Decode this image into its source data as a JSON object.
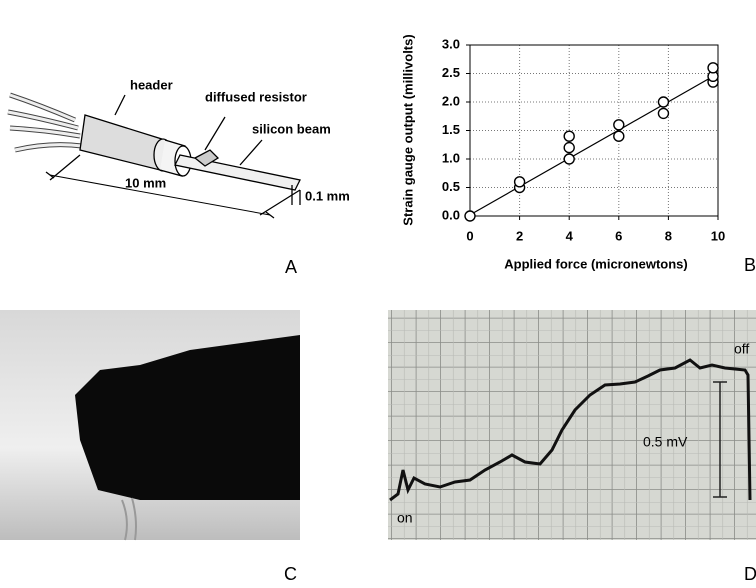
{
  "panel_a": {
    "label": "A",
    "annotations": [
      "header",
      "diffused resistor",
      "silicon beam",
      "10 mm",
      "0.1 mm"
    ]
  },
  "chart_data": {
    "type": "scatter",
    "panel_label": "B",
    "x_label": "Applied force (micronewtons)",
    "y_label": "Strain gauge output (millivolts)",
    "x": [
      0,
      2,
      2,
      4,
      4,
      4,
      6,
      6,
      7.8,
      7.8,
      9.8,
      9.8,
      9.8
    ],
    "values": [
      0,
      0.5,
      0.6,
      1.0,
      1.2,
      1.4,
      1.4,
      1.6,
      1.8,
      2.0,
      2.35,
      2.45,
      2.6
    ],
    "fit_line": {
      "x": [
        0,
        10
      ],
      "y": [
        0.02,
        2.5
      ]
    },
    "xlim": [
      0,
      10
    ],
    "xticks": [
      0,
      2,
      4,
      6,
      8,
      10
    ],
    "ylim": [
      0,
      3
    ],
    "yticks": [
      {
        "value": 0,
        "label": "0.0"
      },
      0.5,
      {
        "value": 1,
        "label": "1.0"
      },
      1.5,
      {
        "value": 2,
        "label": "2.0"
      },
      2.5,
      {
        "value": 3,
        "label": "3.0"
      }
    ],
    "grid": true,
    "color": "#000000"
  },
  "panel_c": {
    "label": "C"
  },
  "panel_d": {
    "label": "D",
    "annotations": [
      "on",
      "off",
      "0.5 mV"
    ]
  }
}
